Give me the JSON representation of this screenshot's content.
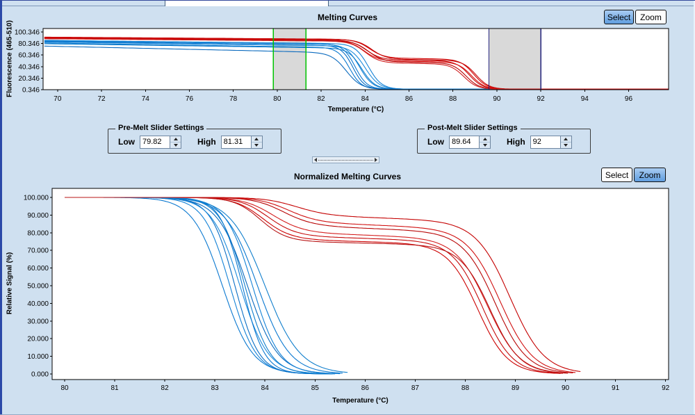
{
  "controls": {
    "select_label": "Select",
    "zoom_label": "Zoom",
    "top_active_button": "Select",
    "bottom_active_button": "Zoom"
  },
  "pre_melt_settings": {
    "title": "Pre-Melt Slider Settings",
    "low_label": "Low",
    "low_value": "79.82",
    "high_label": "High",
    "high_value": "81.31"
  },
  "post_melt_settings": {
    "title": "Post-Melt Slider Settings",
    "low_label": "Low",
    "low_value": "89.64",
    "high_label": "High",
    "high_value": "92"
  },
  "colors": {
    "background": "#cfe0f0",
    "active_button_blue": "#5f9ddf",
    "curve_red": "#c40000",
    "curve_blue": "#0a78d0",
    "pre_melt_slider_green": "#00c400",
    "post_melt_slider_navy": "#23237c",
    "slider_band_gray": "#d9d9d9"
  },
  "chart_data": [
    {
      "type": "line",
      "title": "Melting Curves",
      "xlabel": "Temperature (°C)",
      "ylabel": "Fluorescence (465-510)",
      "x_domain": [
        69.34,
        97.82
      ],
      "y_domain": [
        0.346,
        106.4
      ],
      "x_ticks": [
        70,
        72,
        74,
        76,
        78,
        80,
        82,
        84,
        86,
        88,
        90,
        92,
        94,
        96
      ],
      "y_tick_values": [
        0.346,
        20.346,
        40.346,
        60.346,
        80.346,
        100.346
      ],
      "y_tick_labels": [
        "0.346",
        "20.346",
        "40.346",
        "60.346",
        "80.346",
        "100.346"
      ],
      "series_x_start": 69.4,
      "bands": [
        {
          "name": "pre-melt",
          "low": 79.82,
          "high": 81.31,
          "line_color": "#00c400",
          "band_color": "#d9d9d9"
        },
        {
          "name": "post-melt",
          "low": 89.64,
          "high": 92,
          "line_color": "#23237c",
          "band_color": "#d9d9d9"
        }
      ],
      "series": [
        {
          "group": "blue",
          "model": "melt_single",
          "color": "#0a78d0",
          "start": 86.0,
          "slope": 0.5,
          "mid": 83.55,
          "w": 0.27,
          "end": 1.2
        },
        {
          "group": "blue",
          "model": "melt_single",
          "color": "#1482d6",
          "start": 85.0,
          "slope": 0.45,
          "mid": 83.75,
          "w": 0.3,
          "end": 1.2
        },
        {
          "group": "blue",
          "model": "melt_single",
          "color": "#0a6ec4",
          "start": 84.2,
          "slope": 0.55,
          "mid": 83.45,
          "w": 0.26,
          "end": 1.2
        },
        {
          "group": "blue",
          "model": "melt_single",
          "color": "#1e8cdc",
          "start": 83.0,
          "slope": 0.5,
          "mid": 84.0,
          "w": 0.32,
          "end": 1.2
        },
        {
          "group": "blue",
          "model": "melt_single",
          "color": "#0a78d0",
          "start": 81.5,
          "slope": 0.6,
          "mid": 83.3,
          "w": 0.27,
          "end": 1.2
        },
        {
          "group": "blue",
          "model": "melt_single",
          "color": "#0f7ecc",
          "start": 80.0,
          "slope": 0.55,
          "mid": 83.85,
          "w": 0.3,
          "end": 1.2
        },
        {
          "group": "blue",
          "model": "melt_single",
          "color": "#0a6abe",
          "start": 76.0,
          "slope": 0.85,
          "mid": 83.15,
          "w": 0.34,
          "end": 1.2
        },
        {
          "group": "blue",
          "model": "melt_single",
          "color": "#1482d6",
          "start": 85.8,
          "slope": 0.4,
          "mid": 84.15,
          "w": 0.3,
          "end": 1.2
        },
        {
          "group": "red",
          "model": "melt_double",
          "color": "#d00000",
          "start": 91.5,
          "slope": 0.26,
          "plateau": 56.0,
          "pslope": 0.5,
          "mid1": 84.2,
          "w1": 0.33,
          "mid2": 88.95,
          "w2": 0.3,
          "end": 1.2
        },
        {
          "group": "red",
          "model": "melt_double",
          "color": "#c40a0a",
          "start": 90.5,
          "slope": 0.3,
          "plateau": 53.0,
          "pslope": 0.5,
          "mid1": 84.05,
          "w1": 0.33,
          "mid2": 88.75,
          "w2": 0.3,
          "end": 1.2
        },
        {
          "group": "red",
          "model": "melt_double",
          "color": "#dc1414",
          "start": 89.8,
          "slope": 0.3,
          "plateau": 51.0,
          "pslope": 0.5,
          "mid1": 83.95,
          "w1": 0.33,
          "mid2": 88.85,
          "w2": 0.3,
          "end": 1.2
        },
        {
          "group": "red",
          "model": "melt_double",
          "color": "#b80000",
          "start": 89.2,
          "slope": 0.28,
          "plateau": 49.5,
          "pslope": 0.5,
          "mid1": 84.15,
          "w1": 0.33,
          "mid2": 88.6,
          "w2": 0.3,
          "end": 1.2
        },
        {
          "group": "red",
          "model": "melt_double",
          "color": "#d01e1e",
          "start": 88.6,
          "slope": 0.3,
          "plateau": 47.5,
          "pslope": 0.5,
          "mid1": 84.0,
          "w1": 0.33,
          "mid2": 88.5,
          "w2": 0.3,
          "end": 1.2
        },
        {
          "group": "red",
          "model": "melt_double",
          "color": "#c80a0a",
          "start": 90.9,
          "slope": 0.24,
          "plateau": 54.0,
          "pslope": 0.5,
          "mid1": 84.3,
          "w1": 0.33,
          "mid2": 89.05,
          "w2": 0.3,
          "end": 1.2
        }
      ]
    },
    {
      "type": "line",
      "title": "Normalized Melting Curves",
      "xlabel": "Temperature (°C)",
      "ylabel": "Relative Signal (%)",
      "x_domain": [
        79.75,
        92.06
      ],
      "y_domain": [
        -3.15,
        105.1
      ],
      "x_ticks": [
        80,
        81,
        82,
        83,
        84,
        85,
        86,
        87,
        88,
        89,
        90,
        91,
        92
      ],
      "y_tick_values": [
        0,
        10,
        20,
        30,
        40,
        50,
        60,
        70,
        80,
        90,
        100
      ],
      "y_tick_labels": [
        "0.000",
        "10.000",
        "20.000",
        "30.000",
        "40.000",
        "50.000",
        "60.000",
        "70.000",
        "80.000",
        "90.000",
        "100.000"
      ],
      "series_x_start": 80,
      "bands": [],
      "series": [
        {
          "group": "blue",
          "model": "norm_single",
          "color": "#0a78d0",
          "mid": 83.15,
          "w": 0.3,
          "x_end": 85.1
        },
        {
          "group": "blue",
          "model": "norm_single",
          "color": "#1482d6",
          "mid": 83.3,
          "w": 0.26,
          "x_end": 85.2
        },
        {
          "group": "blue",
          "model": "norm_single",
          "color": "#0a6ec4",
          "mid": 83.4,
          "w": 0.24,
          "x_end": 85.25
        },
        {
          "group": "blue",
          "model": "norm_single",
          "color": "#1e8cdc",
          "mid": 83.5,
          "w": 0.28,
          "x_end": 85.3
        },
        {
          "group": "blue",
          "model": "norm_single",
          "color": "#0a78d0",
          "mid": 83.55,
          "w": 0.22,
          "x_end": 85.35
        },
        {
          "group": "blue",
          "model": "norm_single",
          "color": "#0f7ecc",
          "mid": 83.6,
          "w": 0.25,
          "x_end": 85.4
        },
        {
          "group": "blue",
          "model": "norm_single",
          "color": "#0a6abe",
          "mid": 83.65,
          "w": 0.3,
          "x_end": 85.45
        },
        {
          "group": "blue",
          "model": "norm_single",
          "color": "#1482d6",
          "mid": 83.75,
          "w": 0.27,
          "x_end": 85.5
        },
        {
          "group": "blue",
          "model": "norm_single",
          "color": "#0a78d0",
          "mid": 83.85,
          "w": 0.32,
          "x_end": 85.55
        },
        {
          "group": "blue",
          "model": "norm_single",
          "color": "#0f7ecc",
          "mid": 84.0,
          "w": 0.35,
          "x_end": 85.65
        },
        {
          "group": "red",
          "model": "norm_double",
          "color": "#c40000",
          "plateau": 90,
          "pslope": 0.9,
          "mid1": 84.6,
          "w1": 0.32,
          "mid2": 88.9,
          "w2": 0.34,
          "x_end": 90.3
        },
        {
          "group": "red",
          "model": "norm_double",
          "color": "#d01010",
          "plateau": 86,
          "pslope": 1.0,
          "mid1": 84.45,
          "w1": 0.3,
          "mid2": 88.7,
          "w2": 0.33,
          "x_end": 90.2
        },
        {
          "group": "red",
          "model": "norm_double",
          "color": "#b80606",
          "plateau": 84,
          "pslope": 1.0,
          "mid1": 84.35,
          "w1": 0.3,
          "mid2": 88.6,
          "w2": 0.32,
          "x_end": 90.15
        },
        {
          "group": "red",
          "model": "norm_double",
          "color": "#d41e1e",
          "plateau": 80,
          "pslope": 0.9,
          "mid1": 84.15,
          "w1": 0.3,
          "mid2": 88.45,
          "w2": 0.32,
          "x_end": 90.0
        },
        {
          "group": "red",
          "model": "norm_double",
          "color": "#c40a0a",
          "plateau": 78,
          "pslope": 0.8,
          "mid1": 84.05,
          "w1": 0.28,
          "mid2": 88.35,
          "w2": 0.3,
          "x_end": 89.95
        },
        {
          "group": "red",
          "model": "norm_double",
          "color": "#cc0000",
          "plateau": 76,
          "pslope": 0.7,
          "mid1": 83.95,
          "w1": 0.28,
          "mid2": 88.25,
          "w2": 0.3,
          "x_end": 89.9
        },
        {
          "group": "red",
          "model": "norm_double",
          "color": "#b81414",
          "plateau": 75,
          "pslope": 0.6,
          "mid1": 83.9,
          "w1": 0.26,
          "mid2": 88.5,
          "w2": 0.3,
          "x_end": 90.05
        }
      ]
    }
  ]
}
